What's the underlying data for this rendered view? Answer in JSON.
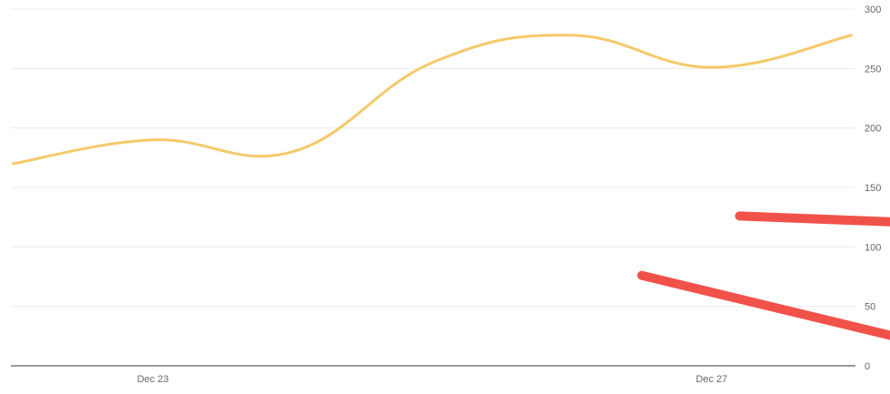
{
  "chart_data": {
    "type": "line",
    "x_ticks": [
      "Dec 23",
      "Dec 27"
    ],
    "y_ticks": [
      "300",
      "250",
      "200",
      "150",
      "100",
      "50",
      "0"
    ],
    "ylim": [
      0,
      300
    ],
    "grid": true,
    "series": [
      {
        "color": "#f5c96a",
        "points": [
          {
            "x": "Dec 22",
            "y": 170
          },
          {
            "x": "Dec 23",
            "y": 190
          },
          {
            "x": "Dec 24",
            "y": 180
          },
          {
            "x": "Dec 25",
            "y": 255
          },
          {
            "x": "Dec 26",
            "y": 278
          },
          {
            "x": "Dec 27",
            "y": 251
          },
          {
            "x": "Dec 28",
            "y": 278
          }
        ]
      },
      {
        "color": "#f0524a",
        "points": [
          {
            "x": "Dec 26.5",
            "y": 76
          },
          {
            "x": "Dec 28.3",
            "y": 25
          }
        ]
      },
      {
        "color": "#f0524a",
        "points": [
          {
            "x": "Dec 27.2",
            "y": 126
          },
          {
            "x": "Dec 28.3",
            "y": 121
          }
        ]
      }
    ]
  }
}
